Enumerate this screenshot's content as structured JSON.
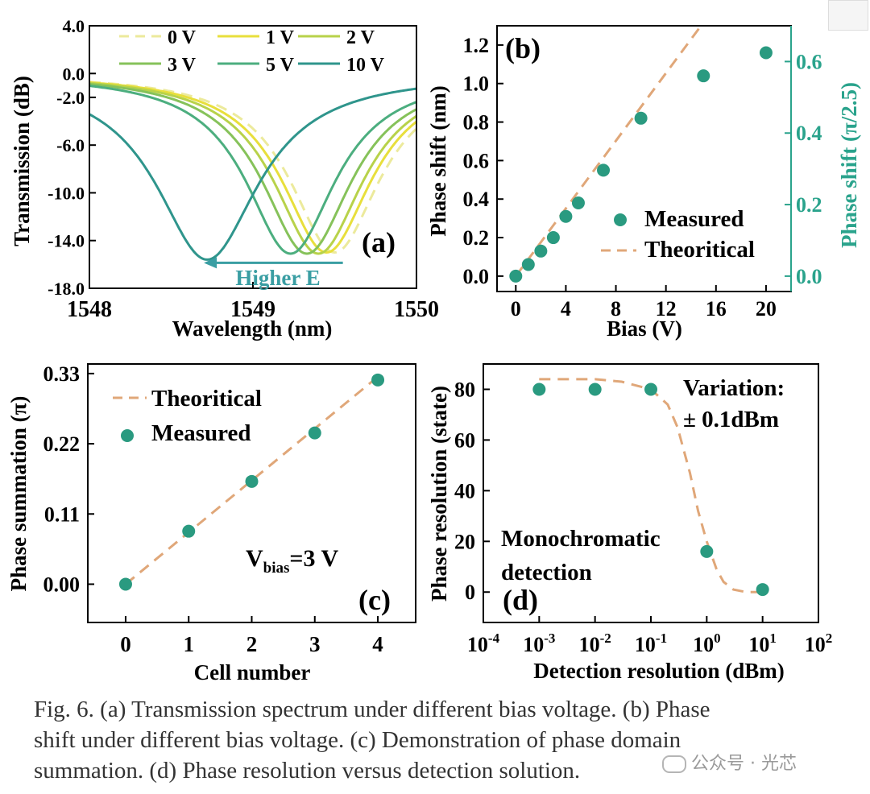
{
  "colors": {
    "v0": "#ecea9c",
    "v1": "#e8df3c",
    "v2": "#b8d24a",
    "v3": "#86c25a",
    "v5": "#4cae7f",
    "v10": "#2f958c",
    "dash": "#e0a779",
    "marker": "#2a9a80",
    "right_axis": "#2aa38c",
    "arrow": "#3a9ea3"
  },
  "chart_data": [
    {
      "id": "a",
      "type": "line",
      "panel_label": "(a)",
      "xlabel": "Wavelength (nm)",
      "ylabel": "Transmission (dB)",
      "xlim": [
        1548,
        1550
      ],
      "ylim": [
        -18,
        4
      ],
      "x_ticks": [
        "1548",
        "1549",
        "1550"
      ],
      "y_ticks": [
        "4.0",
        "0.0",
        "-2.0",
        "-6.0",
        "-10.0",
        "-14.0",
        "-18.0"
      ],
      "y_tick_values": [
        4,
        0,
        -2,
        -6,
        -10,
        -14,
        -18
      ],
      "annotation": "Higher E",
      "arrow_from": [
        1549.55,
        -15.6
      ],
      "arrow_to": [
        1548.7,
        -15.6
      ],
      "series": [
        {
          "name": "0 V",
          "center": 1549.5,
          "depth": -15.0,
          "width": 0.35,
          "dashed": true,
          "colorKey": "v0"
        },
        {
          "name": "1 V",
          "center": 1549.45,
          "depth": -15.0,
          "width": 0.35,
          "dashed": false,
          "colorKey": "v1"
        },
        {
          "name": "2 V",
          "center": 1549.4,
          "depth": -15.1,
          "width": 0.35,
          "dashed": false,
          "colorKey": "v2"
        },
        {
          "name": "3 V",
          "center": 1549.33,
          "depth": -15.1,
          "width": 0.35,
          "dashed": false,
          "colorKey": "v3"
        },
        {
          "name": "5 V",
          "center": 1549.23,
          "depth": -15.1,
          "width": 0.35,
          "dashed": false,
          "colorKey": "v5"
        },
        {
          "name": "10 V",
          "center": 1548.72,
          "depth": -15.6,
          "width": 0.4,
          "dashed": false,
          "colorKey": "v10"
        }
      ]
    },
    {
      "id": "b",
      "type": "scatter",
      "panel_label": "(b)",
      "xlabel": "Bias (V)",
      "ylabel": "Phase shift (nm)",
      "y2label": "Phase shift (π/2.5)",
      "xlim": [
        -1.5,
        22
      ],
      "ylim": [
        -0.08,
        1.3
      ],
      "y2lim": [
        -0.043,
        0.7
      ],
      "x_ticks": [
        "0",
        "4",
        "8",
        "12",
        "16",
        "20"
      ],
      "x_tick_values": [
        0,
        4,
        8,
        12,
        16,
        20
      ],
      "y_ticks": [
        "0.0",
        "0.2",
        "0.4",
        "0.6",
        "0.8",
        "1.0",
        "1.2"
      ],
      "y_tick_values": [
        0,
        0.2,
        0.4,
        0.6,
        0.8,
        1.0,
        1.2
      ],
      "y2_ticks": [
        "0.0",
        "0.2",
        "0.4",
        "0.6"
      ],
      "y2_tick_values": [
        0,
        0.2,
        0.4,
        0.6
      ],
      "legend": [
        "Measured",
        "Theoritical"
      ],
      "measured": {
        "x": [
          0,
          1,
          2,
          3,
          4,
          5,
          7,
          10,
          15,
          20
        ],
        "y": [
          0.0,
          0.06,
          0.13,
          0.2,
          0.31,
          0.38,
          0.55,
          0.82,
          1.04,
          1.16
        ]
      },
      "theoretical": {
        "x": [
          0,
          14.8
        ],
        "y": [
          0.0,
          1.3
        ]
      }
    },
    {
      "id": "c",
      "type": "scatter",
      "panel_label": "(c)",
      "xlabel": "Cell number",
      "ylabel": "Phase summation (π)",
      "xlim": [
        -0.6,
        4.6
      ],
      "ylim": [
        -0.06,
        0.345
      ],
      "x_ticks": [
        "0",
        "1",
        "2",
        "3",
        "4"
      ],
      "x_tick_values": [
        0,
        1,
        2,
        3,
        4
      ],
      "y_ticks": [
        "0.00",
        "0.11",
        "0.22",
        "0.33"
      ],
      "y_tick_values": [
        0,
        0.11,
        0.22,
        0.33
      ],
      "legend": [
        "Theoritical",
        "Measured"
      ],
      "annotation_main": "V",
      "annotation_sub": "bias",
      "annotation_tail": "=3 V",
      "measured": {
        "x": [
          0,
          1,
          2,
          3,
          4
        ],
        "y": [
          0.0,
          0.083,
          0.161,
          0.237,
          0.32
        ]
      },
      "theoretical": {
        "x": [
          0,
          4
        ],
        "y": [
          0.0,
          0.325
        ]
      }
    },
    {
      "id": "d",
      "type": "scatter",
      "panel_label": "(d)",
      "xlabel": "Detection resolution (dBm)",
      "ylabel": "Phase resolution (state)",
      "x_scale": "log",
      "xlim_exp": [
        -4,
        2
      ],
      "ylim": [
        -12,
        90
      ],
      "x_tick_base": "10",
      "x_tick_exps": [
        "-4",
        "-3",
        "-2",
        "-1",
        "0",
        "1",
        "2"
      ],
      "y_ticks": [
        "0",
        "20",
        "40",
        "60",
        "80"
      ],
      "y_tick_values": [
        0,
        20,
        40,
        60,
        80
      ],
      "annotation_1": "Variation:",
      "annotation_2": "± 0.1dBm",
      "annotation_3": "Monochromatic",
      "annotation_4": "detection",
      "measured": {
        "x": [
          0.001,
          0.01,
          0.1,
          1,
          10
        ],
        "y": [
          80,
          80,
          80,
          16,
          1
        ]
      },
      "theoretical": {
        "x": [
          0.001,
          0.003,
          0.01,
          0.03,
          0.1,
          0.2,
          0.3,
          0.5,
          0.7,
          1,
          1.5,
          2,
          3,
          5,
          10
        ],
        "y": [
          84,
          84,
          84,
          83,
          80,
          74,
          65,
          47,
          32,
          20,
          9,
          4,
          1,
          0,
          0
        ]
      }
    }
  ],
  "caption": {
    "line1": "Fig. 6. (a) Transmission spectrum under different bias voltage.  (b) Phase",
    "line2": "shift  under different bias voltage. (c) Demonstration of phase domain",
    "line3": "summation. (d) Phase resolution versus detection solution."
  },
  "watermark": "公众号 · 光芯"
}
